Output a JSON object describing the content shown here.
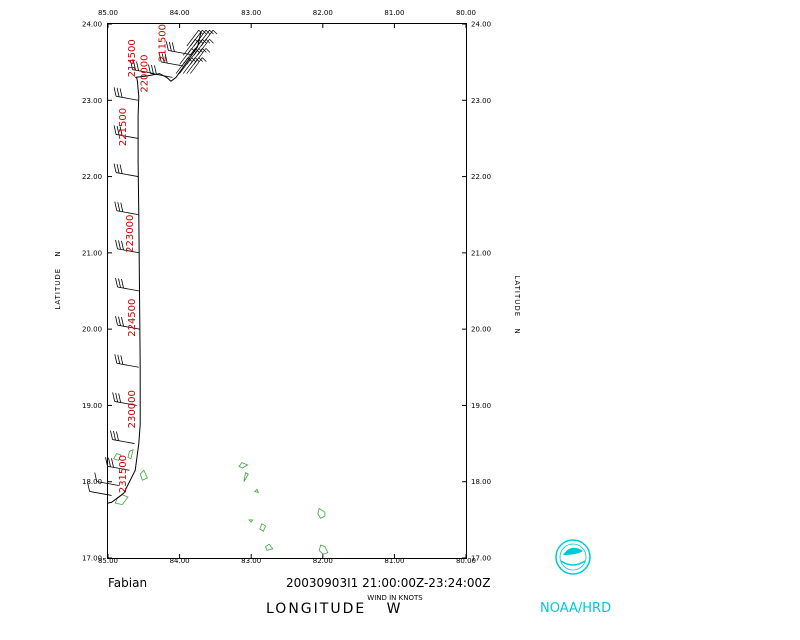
{
  "chart_data": {
    "type": "line",
    "flight_label": "Fabian",
    "time_range": "20030903I1 21:00:00Z-23:24:00Z",
    "xlabel": "LONGITUDE",
    "xlabel_dir": "W",
    "ylabel": "LATITUDE",
    "ylabel_dir": "N",
    "wind_units": "WIND IN KNOTS",
    "credit": "NOAA/HRD",
    "xlim": [
      85,
      80
    ],
    "ylim": [
      17,
      24
    ],
    "x_ticks": [
      "85.00",
      "84.00",
      "83.00",
      "82.00",
      "81.00",
      "80.00"
    ],
    "y_ticks": [
      "17.00",
      "18.00",
      "19.00",
      "20.00",
      "21.00",
      "22.00",
      "23.00",
      "24.00"
    ],
    "track": {
      "lon": [
        85.0,
        84.95,
        84.78,
        84.62,
        84.57,
        84.55,
        84.55,
        84.56,
        84.57,
        84.58,
        84.58,
        84.57,
        84.59,
        84.6,
        84.62,
        84.62,
        84.45,
        84.28,
        84.18,
        84.12,
        84.05,
        83.9,
        83.75,
        83.7
      ],
      "lat": [
        17.72,
        17.73,
        17.85,
        18.15,
        18.5,
        18.75,
        19.5,
        20.5,
        21.5,
        22.2,
        22.8,
        23.05,
        23.25,
        23.3,
        23.3,
        23.3,
        23.32,
        23.35,
        23.3,
        23.25,
        23.3,
        23.5,
        23.7,
        23.9
      ]
    },
    "time_labels": [
      {
        "text": "231500",
        "lon": 84.75,
        "lat": 17.85
      },
      {
        "text": "230000",
        "lon": 84.62,
        "lat": 18.7
      },
      {
        "text": "224500",
        "lon": 84.62,
        "lat": 19.9
      },
      {
        "text": "223000",
        "lon": 84.65,
        "lat": 21.0
      },
      {
        "text": "221500",
        "lon": 84.75,
        "lat": 22.4
      },
      {
        "text": "214500",
        "lon": 84.62,
        "lat": 23.3
      },
      {
        "text": "220000",
        "lon": 84.45,
        "lat": 23.1
      },
      {
        "text": "211500",
        "lon": 84.2,
        "lat": 23.5
      }
    ],
    "wind_barbs": [
      {
        "lon": 84.95,
        "lat": 17.82
      },
      {
        "lon": 84.85,
        "lat": 17.95
      },
      {
        "lon": 84.7,
        "lat": 18.15
      },
      {
        "lon": 84.63,
        "lat": 18.5
      },
      {
        "lon": 84.6,
        "lat": 19.0
      },
      {
        "lon": 84.57,
        "lat": 19.5
      },
      {
        "lon": 84.56,
        "lat": 20.0
      },
      {
        "lon": 84.56,
        "lat": 20.5
      },
      {
        "lon": 84.56,
        "lat": 21.0
      },
      {
        "lon": 84.57,
        "lat": 21.5
      },
      {
        "lon": 84.58,
        "lat": 22.0
      },
      {
        "lon": 84.58,
        "lat": 22.5
      },
      {
        "lon": 84.58,
        "lat": 23.0
      },
      {
        "lon": 84.35,
        "lat": 23.35
      },
      {
        "lon": 84.1,
        "lat": 23.3
      },
      {
        "lon": 83.95,
        "lat": 23.45
      },
      {
        "lon": 83.85,
        "lat": 23.6
      }
    ]
  },
  "colors": {
    "track": "#000000",
    "time_labels": "#cc0000",
    "land": "#3aa83a",
    "noaa": "#00c8d8"
  },
  "icons": {
    "logo": "noaa-logo"
  }
}
